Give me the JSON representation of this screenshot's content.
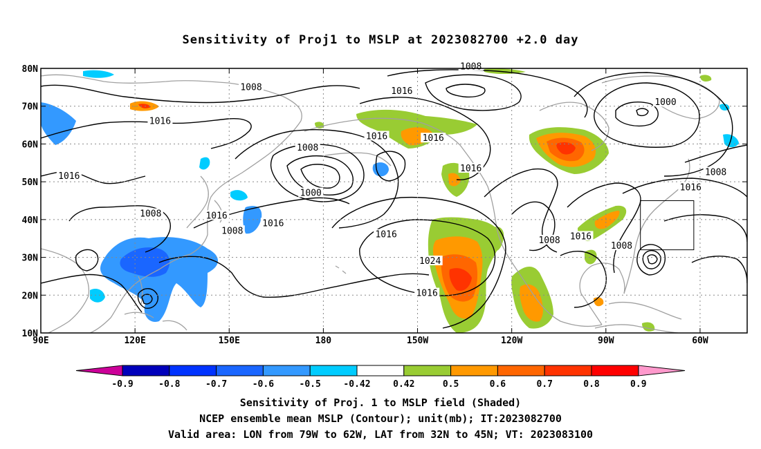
{
  "title": "Sensitivity of Proj1 to MSLP at 2023082700 +2.0 day",
  "map": {
    "lat_labels": [
      "80N",
      "70N",
      "60N",
      "50N",
      "40N",
      "30N",
      "20N",
      "10N"
    ],
    "lon_labels": [
      "90E",
      "120E",
      "150E",
      "180",
      "150W",
      "120W",
      "90W",
      "60W"
    ],
    "lon_range": [
      90,
      315
    ],
    "lat_range": [
      10,
      80
    ],
    "valid_area_box": {
      "lon": [
        281,
        298
      ],
      "lat": [
        32,
        45
      ]
    },
    "contour_labels": [
      {
        "text": "1008",
        "lon": 157,
        "lat": 75
      },
      {
        "text": "1016",
        "lon": 128,
        "lat": 66
      },
      {
        "text": "1016",
        "lon": 99,
        "lat": 51.5
      },
      {
        "text": "1008",
        "lon": 125,
        "lat": 41.5
      },
      {
        "text": "1016",
        "lon": 146,
        "lat": 41
      },
      {
        "text": "1008",
        "lon": 151,
        "lat": 37
      },
      {
        "text": "1008",
        "lon": 175,
        "lat": 59
      },
      {
        "text": "1000",
        "lon": 176,
        "lat": 47
      },
      {
        "text": "1016",
        "lon": 164,
        "lat": 39
      },
      {
        "text": "1016",
        "lon": 197,
        "lat": 62
      },
      {
        "text": "1016",
        "lon": 205,
        "lat": 74
      },
      {
        "text": "1016",
        "lon": 215,
        "lat": 61.5
      },
      {
        "text": "1008",
        "lon": 227,
        "lat": 80.5
      },
      {
        "text": "1016",
        "lon": 227,
        "lat": 53.5
      },
      {
        "text": "1016",
        "lon": 200,
        "lat": 36
      },
      {
        "text": "1024",
        "lon": 214,
        "lat": 29
      },
      {
        "text": "1016",
        "lon": 213,
        "lat": 20.5
      },
      {
        "text": "1008",
        "lon": 252,
        "lat": 34.5
      },
      {
        "text": "1016",
        "lon": 262,
        "lat": 35.5
      },
      {
        "text": "1008",
        "lon": 275,
        "lat": 33
      },
      {
        "text": "1000",
        "lon": 289,
        "lat": 71
      },
      {
        "text": "1016",
        "lon": 297,
        "lat": 48.5
      },
      {
        "text": "1008",
        "lon": 305,
        "lat": 52.5
      }
    ]
  },
  "colorbar": {
    "labels": [
      "-0.9",
      "-0.8",
      "-0.7",
      "-0.6",
      "-0.5",
      "-0.42",
      "0.42",
      "0.5",
      "0.6",
      "0.7",
      "0.8",
      "0.9"
    ],
    "colors": [
      "#0000bb",
      "#0033ff",
      "#1a66ff",
      "#3399ff",
      "#00ccff",
      "#ffffff",
      "#99cc33",
      "#ff9900",
      "#ff6600",
      "#ff3300",
      "#ff0000"
    ],
    "low_end_color": "#cc0099",
    "high_end_color": "#ff99cc"
  },
  "captions": {
    "line1": "Sensitivity of Proj. 1 to MSLP field (Shaded)",
    "line2": "NCEP ensemble mean MSLP (Contour); unit(mb); IT:2023082700",
    "line3": "Valid area: LON from 79W to 62W, LAT from 32N to 45N; VT: 2023083100"
  }
}
